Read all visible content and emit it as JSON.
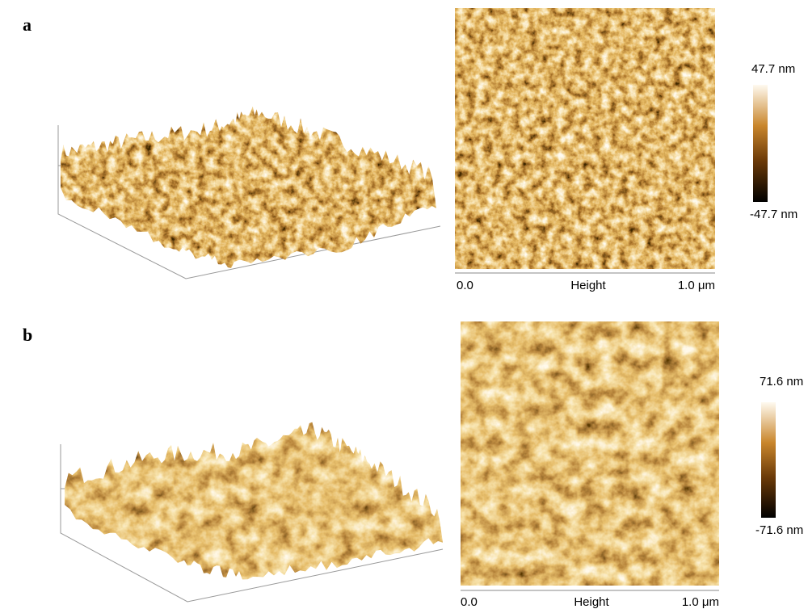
{
  "panels": [
    {
      "label": "a",
      "scale_max": "47.7 nm",
      "scale_min": "-47.7 nm",
      "axis_start": "0.0",
      "axis_title": "Height",
      "axis_end": "1.0 μm"
    },
    {
      "label": "b",
      "scale_max": "71.6 nm",
      "scale_min": "-71.6 nm",
      "axis_start": "0.0",
      "axis_title": "Height",
      "axis_end": "1.0 μm"
    }
  ]
}
